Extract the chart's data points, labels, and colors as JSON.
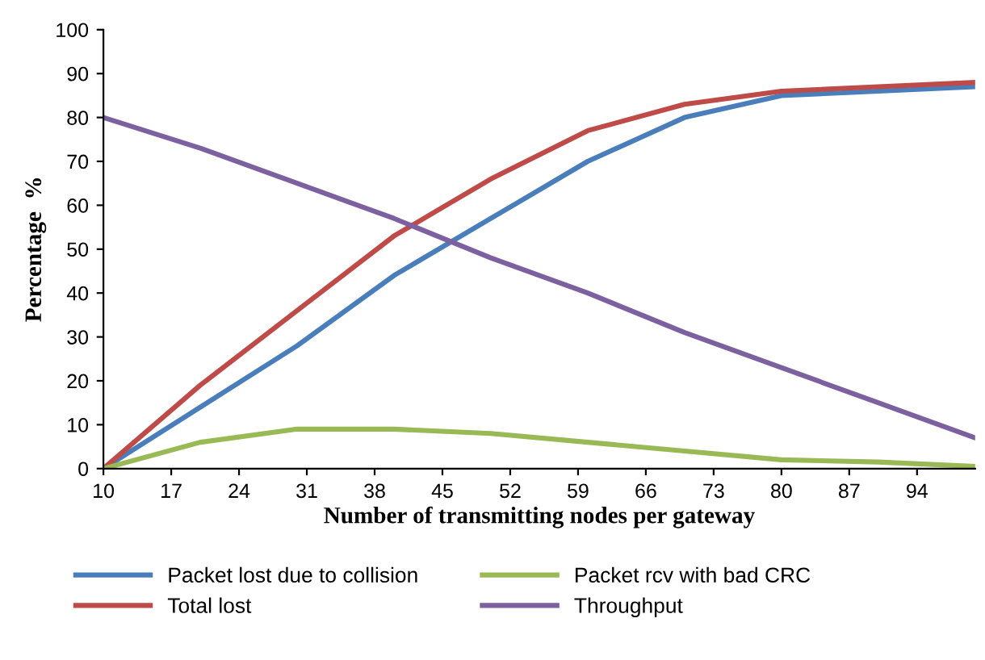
{
  "chart_data": {
    "type": "line",
    "xlabel": "Number of transmitting nodes per gateway",
    "ylabel": "Percentage  %",
    "x": [
      10,
      20,
      30,
      40,
      50,
      60,
      70,
      80,
      90,
      100
    ],
    "series": [
      {
        "name": "Packet lost due to collision",
        "color": "#4a7ebb",
        "values": [
          0,
          14,
          28,
          44,
          57,
          70,
          80,
          85,
          86,
          87
        ]
      },
      {
        "name": "Total lost",
        "color": "#be4b48",
        "values": [
          0,
          19,
          36,
          53,
          66,
          77,
          83,
          86,
          87,
          88
        ]
      },
      {
        "name": "Packet rcv with bad CRC",
        "color": "#98b954",
        "values": [
          0,
          6,
          9,
          9,
          8,
          6,
          4,
          2,
          1.5,
          0.5
        ]
      },
      {
        "name": "Throughput",
        "color": "#7d60a0",
        "values": [
          80,
          73,
          65,
          57,
          48,
          40,
          31,
          23,
          15,
          7
        ]
      }
    ],
    "xlim": [
      10,
      100
    ],
    "xticks": [
      10,
      17,
      24,
      31,
      38,
      45,
      52,
      59,
      66,
      73,
      80,
      87,
      94
    ],
    "ylim": [
      0,
      100
    ],
    "yticks": [
      0,
      10,
      20,
      30,
      40,
      50,
      60,
      70,
      80,
      90,
      100
    ],
    "grid": false,
    "legend": "bottom",
    "marker": "none",
    "line_style": "solid"
  }
}
